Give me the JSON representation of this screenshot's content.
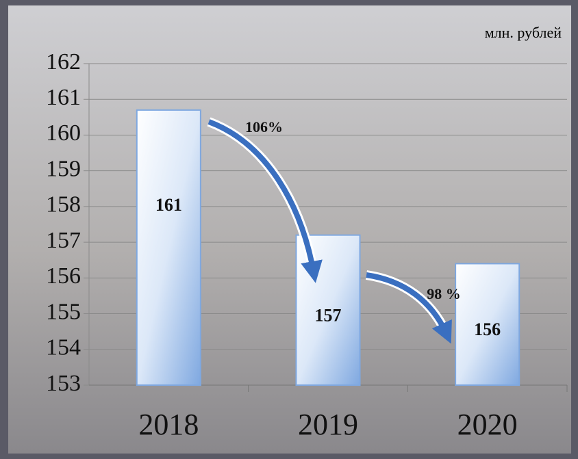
{
  "chart_data": {
    "type": "bar",
    "unit_label": "млн. рублей",
    "categories": [
      "2018",
      "2019",
      "2020"
    ],
    "values": [
      160.7,
      157.2,
      156.4
    ],
    "value_labels": [
      "161",
      "157",
      "156"
    ],
    "color": "#7fa8e0",
    "ylim": [
      153,
      162
    ],
    "yticks": [
      153,
      154,
      155,
      156,
      157,
      158,
      159,
      160,
      161,
      162
    ],
    "grid": true,
    "annotations": [
      "106%",
      "98 %"
    ]
  }
}
